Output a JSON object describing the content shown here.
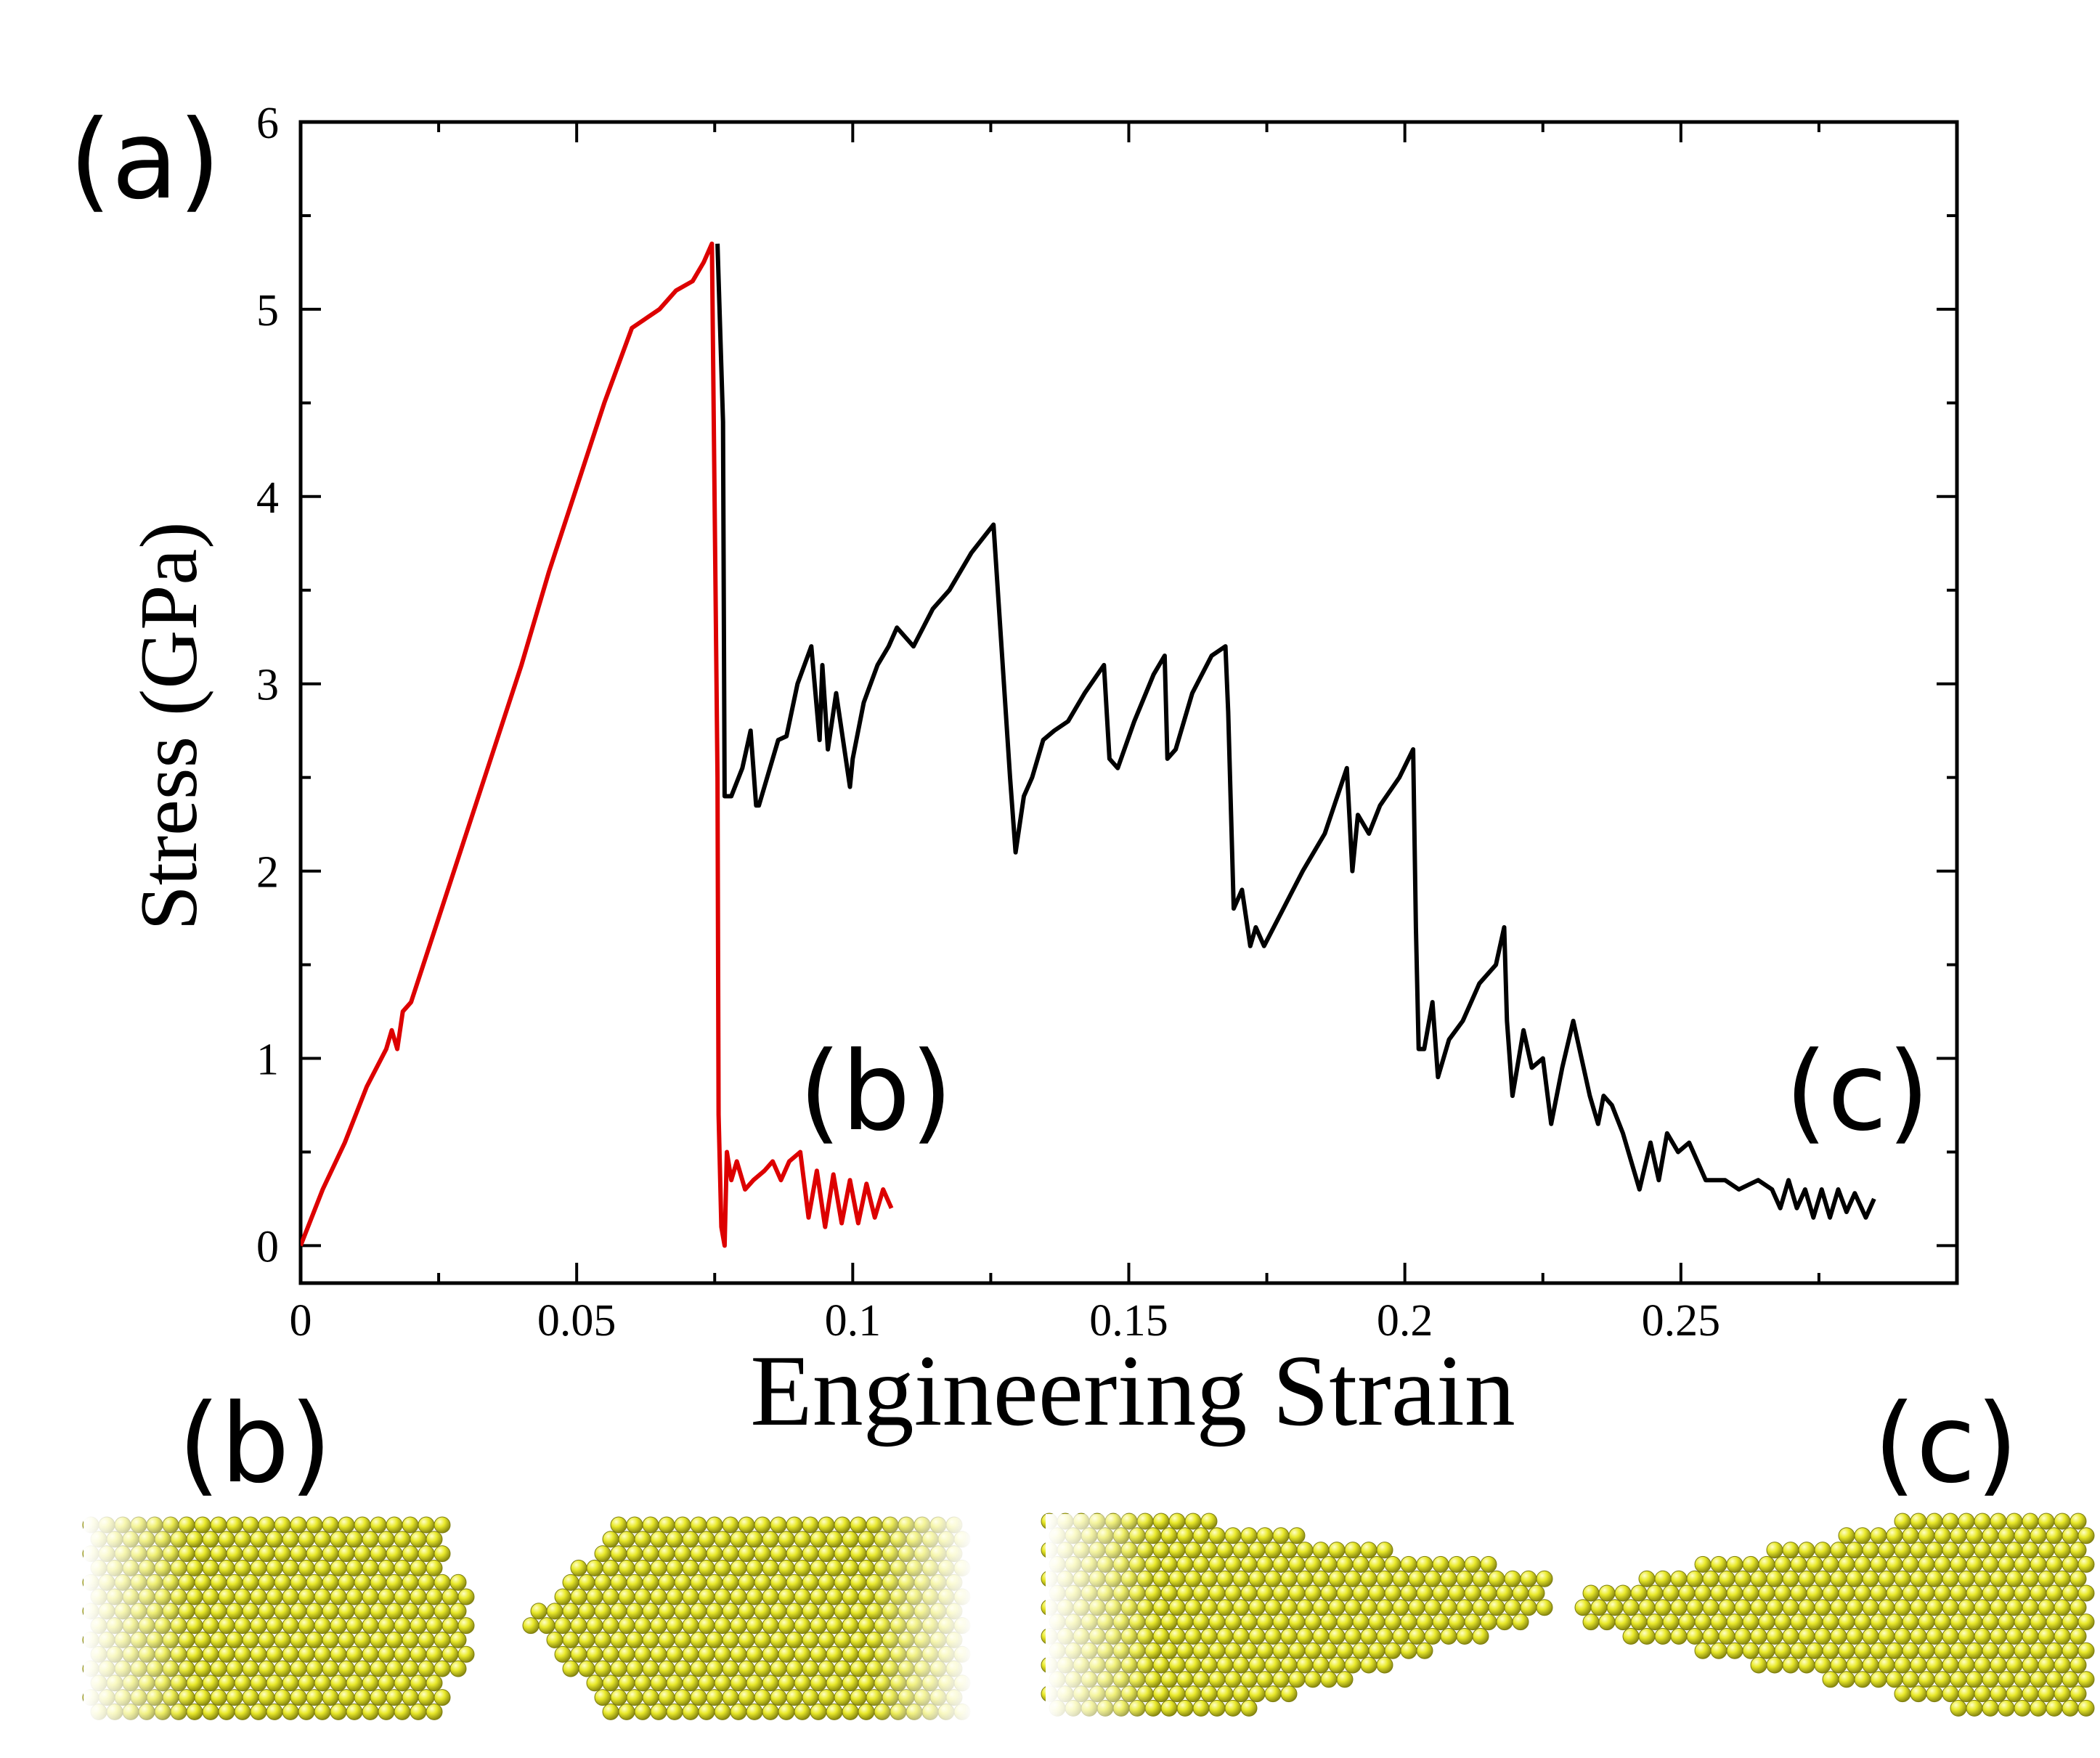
{
  "figure": {
    "panel_labels": {
      "a": "(a)",
      "b": "(b)",
      "c": "(c)"
    },
    "snapshot_labels": {
      "b": "(b)",
      "c": "(c)"
    }
  },
  "colors": {
    "red_series": "#dd0000",
    "black_series": "#000000",
    "atom_fill": "#e6e62a",
    "atom_edge": "#7d7d10",
    "background": "#ffffff"
  },
  "chart_data": {
    "type": "line",
    "title": "",
    "xlabel": "Engineering Strain",
    "ylabel": "Stress (GPa)",
    "xlim": [
      0,
      0.3
    ],
    "ylim": [
      -0.2,
      6
    ],
    "xticks": [
      0,
      0.05,
      0.1,
      0.15,
      0.2,
      0.25
    ],
    "xtick_labels": [
      "0",
      "0.05",
      "0.1",
      "0.15",
      "0.2",
      "0.25"
    ],
    "yticks": [
      0,
      1,
      2,
      3,
      4,
      5,
      6
    ],
    "ytick_labels": [
      "0",
      "1",
      "2",
      "3",
      "4",
      "5",
      "6"
    ],
    "grid": false,
    "series": [
      {
        "name": "black",
        "color": "#000000",
        "x": [
          0.0755,
          0.0765,
          0.0768,
          0.078,
          0.08,
          0.0815,
          0.0825,
          0.083,
          0.0845,
          0.0865,
          0.088,
          0.09,
          0.0925,
          0.094,
          0.0945,
          0.0955,
          0.097,
          0.0995,
          0.1,
          0.102,
          0.1045,
          0.1065,
          0.108,
          0.111,
          0.1145,
          0.1175,
          0.1215,
          0.1255,
          0.1285,
          0.1295,
          0.131,
          0.1325,
          0.1345,
          0.1365,
          0.139,
          0.142,
          0.1455,
          0.1465,
          0.148,
          0.151,
          0.1545,
          0.1565,
          0.157,
          0.1585,
          0.1615,
          0.165,
          0.1675,
          0.168,
          0.169,
          0.1705,
          0.172,
          0.173,
          0.1745,
          0.178,
          0.1815,
          0.1855,
          0.1895,
          0.1905,
          0.1915,
          0.1935,
          0.1955,
          0.199,
          0.2015,
          0.202,
          0.2025,
          0.2035,
          0.205,
          0.206,
          0.208,
          0.2105,
          0.2135,
          0.2165,
          0.218,
          0.2185,
          0.2195,
          0.2215,
          0.223,
          0.225,
          0.2265,
          0.2285,
          0.2305,
          0.2335,
          0.235,
          0.236,
          0.2375,
          0.2395,
          0.2425,
          0.2445,
          0.246,
          0.2475,
          0.2495,
          0.2515,
          0.2545,
          0.258,
          0.2605,
          0.264,
          0.2665,
          0.268,
          0.2695,
          0.271,
          0.2725,
          0.274,
          0.2755,
          0.277,
          0.2785,
          0.28,
          0.2815,
          0.2835,
          0.285
        ],
        "values": [
          5.35,
          4.4,
          2.4,
          2.4,
          2.55,
          2.75,
          2.35,
          2.35,
          2.5,
          2.7,
          2.72,
          3.0,
          3.2,
          2.7,
          3.1,
          2.65,
          2.95,
          2.45,
          2.6,
          2.9,
          3.1,
          3.2,
          3.3,
          3.2,
          3.4,
          3.5,
          3.7,
          3.85,
          2.5,
          2.1,
          2.4,
          2.5,
          2.7,
          2.75,
          2.8,
          2.95,
          3.1,
          2.6,
          2.55,
          2.8,
          3.05,
          3.15,
          2.6,
          2.65,
          2.95,
          3.15,
          3.2,
          2.85,
          1.8,
          1.9,
          1.6,
          1.7,
          1.6,
          1.8,
          2.0,
          2.2,
          2.55,
          2.0,
          2.3,
          2.2,
          2.35,
          2.5,
          2.65,
          1.7,
          1.05,
          1.05,
          1.3,
          0.9,
          1.1,
          1.2,
          1.4,
          1.5,
          1.7,
          1.2,
          0.8,
          1.15,
          0.95,
          1.0,
          0.65,
          0.95,
          1.2,
          0.8,
          0.65,
          0.8,
          0.75,
          0.6,
          0.3,
          0.55,
          0.35,
          0.6,
          0.5,
          0.55,
          0.35,
          0.35,
          0.3,
          0.35,
          0.3,
          0.2,
          0.35,
          0.2,
          0.3,
          0.15,
          0.3,
          0.15,
          0.3,
          0.18,
          0.28,
          0.15,
          0.25
        ],
        "x_order_note": "plotted in listed order"
      },
      {
        "name": "red",
        "color": "#dd0000",
        "x": [
          0,
          0.004,
          0.008,
          0.012,
          0.0155,
          0.0165,
          0.0175,
          0.0185,
          0.02,
          0.025,
          0.03,
          0.035,
          0.04,
          0.045,
          0.05,
          0.055,
          0.06,
          0.065,
          0.068,
          0.071,
          0.073,
          0.0745,
          0.0755,
          0.0757,
          0.0762,
          0.0768,
          0.0772,
          0.078,
          0.079,
          0.0805,
          0.082,
          0.084,
          0.0855,
          0.087,
          0.0885,
          0.0905,
          0.092,
          0.0935,
          0.095,
          0.0965,
          0.098,
          0.0995,
          0.101,
          0.1025,
          0.104,
          0.1055,
          0.107
        ],
        "values": [
          0,
          0.3,
          0.55,
          0.85,
          1.05,
          1.15,
          1.05,
          1.25,
          1.3,
          1.75,
          2.2,
          2.65,
          3.1,
          3.6,
          4.05,
          4.5,
          4.9,
          5.0,
          5.1,
          5.15,
          5.25,
          5.35,
          2.5,
          0.7,
          0.1,
          0.0,
          0.5,
          0.35,
          0.45,
          0.3,
          0.35,
          0.4,
          0.45,
          0.35,
          0.45,
          0.5,
          0.15,
          0.4,
          0.1,
          0.38,
          0.12,
          0.35,
          0.12,
          0.33,
          0.15,
          0.3,
          0.2
        ]
      }
    ]
  }
}
